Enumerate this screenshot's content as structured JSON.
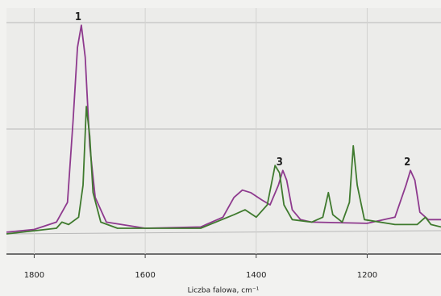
{
  "chart_data": {
    "type": "line",
    "x_label": "Liczba falowa, cm⁻¹",
    "xlim": [
      1850,
      1067
    ],
    "xticks": [
      1800,
      1600,
      1400,
      1200
    ],
    "ylim": [
      0,
      100
    ],
    "grid": true,
    "series": [
      {
        "name": null,
        "color": "#8e3a8e",
        "x": [
          1850,
          1800,
          1760,
          1740,
          1730,
          1722,
          1715,
          1708,
          1700,
          1690,
          1670,
          1600,
          1500,
          1460,
          1440,
          1425,
          1410,
          1390,
          1375,
          1360,
          1352,
          1345,
          1335,
          1320,
          1300,
          1200,
          1150,
          1130,
          1122,
          1114,
          1105,
          1090,
          1067
        ],
        "values": [
          8.9,
          10,
          13,
          21,
          54,
          84,
          93,
          80,
          44,
          23,
          13,
          10.5,
          11,
          15,
          23,
          26,
          25,
          22,
          20,
          28,
          34,
          30,
          18,
          14,
          13,
          12.5,
          15,
          28,
          34,
          30,
          17,
          14,
          14
        ]
      },
      {
        "name": null,
        "color": "#3f7a2e",
        "x": [
          1850,
          1760,
          1750,
          1738,
          1720,
          1712,
          1706,
          1700,
          1694,
          1680,
          1650,
          1500,
          1440,
          1420,
          1400,
          1380,
          1366,
          1358,
          1350,
          1335,
          1300,
          1280,
          1270,
          1262,
          1245,
          1232,
          1225,
          1218,
          1205,
          1150,
          1110,
          1095,
          1085,
          1067
        ],
        "values": [
          8.2,
          10.5,
          13,
          12,
          15,
          28,
          60,
          48,
          25,
          13,
          10.5,
          10.5,
          16,
          18,
          15,
          20,
          36,
          33,
          20,
          14,
          13,
          15,
          25,
          16,
          13,
          21,
          44,
          28,
          14,
          12,
          12,
          15,
          12,
          11
        ]
      }
    ],
    "annotations": [
      {
        "text": "1",
        "x": 1715,
        "y": 93
      },
      {
        "text": "2",
        "x": 1122,
        "y": 34
      },
      {
        "text": "3",
        "x": 1352,
        "y": 34
      }
    ]
  }
}
